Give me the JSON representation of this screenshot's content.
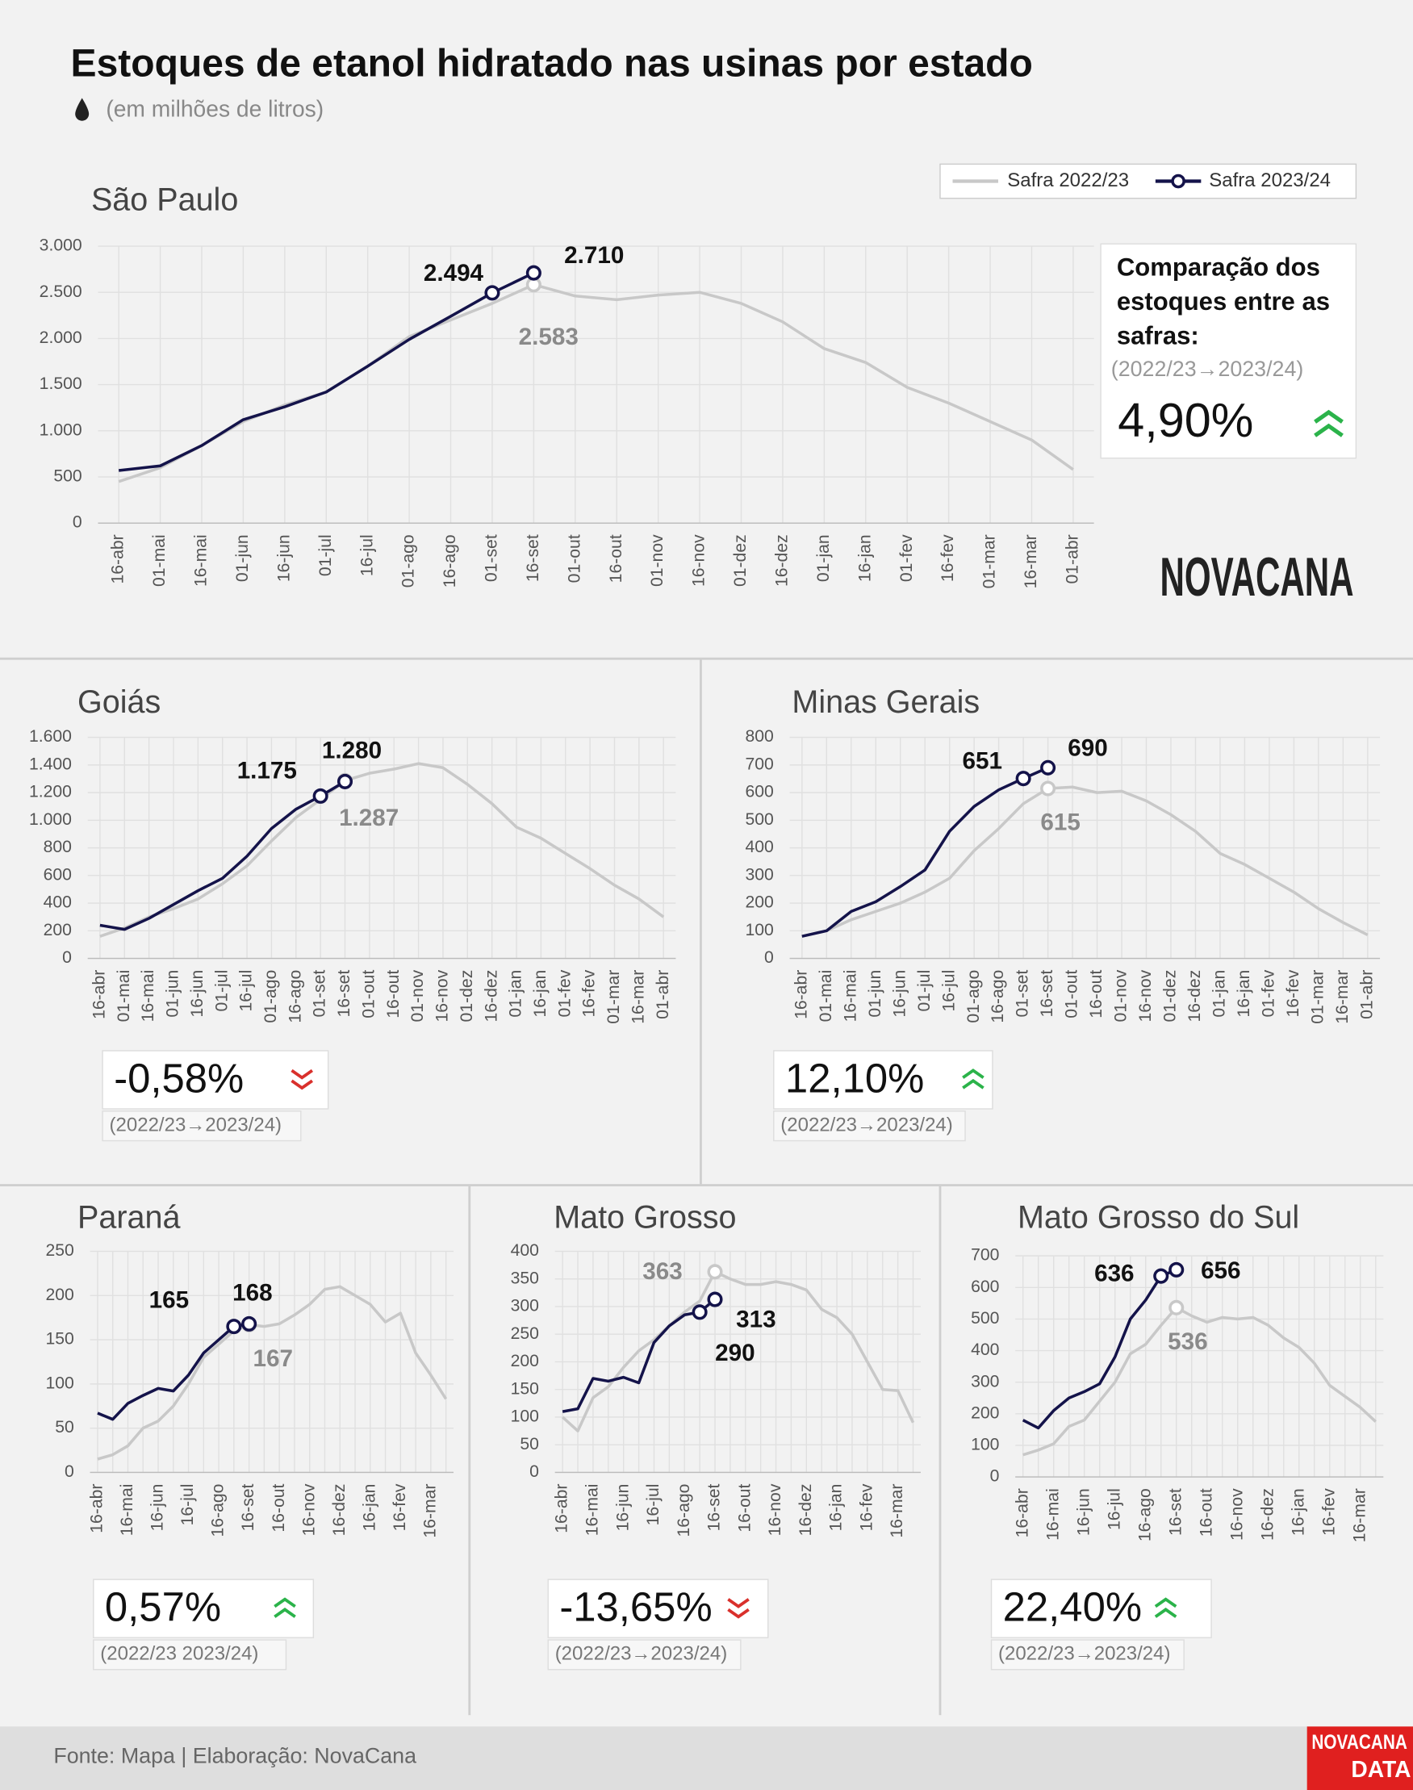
{
  "title": "Estoques de etanol hidratado nas usinas por estado",
  "subtitle": "(em milhões de litros)",
  "logo": "NOVACANA",
  "footer_logo": [
    "NOVACANA",
    "DATA"
  ],
  "source": "Fonte: Mapa | Elaboração: NovaCana",
  "chart_data": [
    {
      "type": "line",
      "title": "São Paulo",
      "grid": true,
      "categories": [
        "16-abr",
        "01-mai",
        "16-mai",
        "01-jun",
        "16-jun",
        "01-jul",
        "16-jul",
        "01-ago",
        "16-ago",
        "01-set",
        "16-set",
        "01-out",
        "16-out",
        "01-nov",
        "16-nov",
        "01-dez",
        "16-dez",
        "01-jan",
        "16-jan",
        "01-fev",
        "16-fev",
        "01-mar",
        "16-mar",
        "01-abr"
      ],
      "ylim": [
        0,
        3000
      ],
      "yticks": [
        0,
        500,
        {
          "value": 1000,
          "label": "1.000"
        },
        {
          "value": 1500,
          "label": "1.500"
        },
        {
          "value": 2000,
          "label": "2.000"
        },
        {
          "value": 2500,
          "label": "2.500"
        },
        {
          "value": 3000,
          "label": "3.000"
        }
      ],
      "series": [
        {
          "name": "Safra 2022/23",
          "color": "#c8c8c8",
          "values": [
            450,
            600,
            840,
            1100,
            1280,
            1420,
            1700,
            2020,
            2200,
            2380,
            2583,
            2460,
            2420,
            2470,
            2500,
            2380,
            2180,
            1890,
            1740,
            1470,
            1300,
            1100,
            900,
            580
          ],
          "value_labels": [
            null,
            null,
            null,
            null,
            null,
            null,
            null,
            null,
            null,
            null,
            "2.583",
            null,
            null,
            null,
            null,
            null,
            null,
            null,
            null,
            null,
            null,
            null,
            null,
            null
          ]
        },
        {
          "name": "Safra 2023/24",
          "color": "#14134a",
          "values": [
            570,
            620,
            840,
            1120,
            1260,
            1420,
            1700,
            1990,
            2240,
            2494,
            2710,
            null,
            null,
            null,
            null,
            null,
            null,
            null,
            null,
            null,
            null,
            null,
            null,
            null
          ],
          "value_labels": [
            null,
            null,
            null,
            null,
            null,
            null,
            null,
            null,
            null,
            "2.494",
            "2.710",
            null,
            null,
            null,
            null,
            null,
            null,
            null,
            null,
            null,
            null,
            null,
            null,
            null
          ]
        }
      ],
      "comparison_title": "Comparação dos estoques entre as safras:",
      "comparison": "4,90%",
      "trend": "up",
      "period": "(2022/23→2023/24)"
    },
    {
      "type": "line",
      "title": "Goiás",
      "grid": true,
      "categories": [
        "16-abr",
        "01-mai",
        "16-mai",
        "01-jun",
        "16-jun",
        "01-jul",
        "16-jul",
        "01-ago",
        "16-ago",
        "01-set",
        "16-set",
        "01-out",
        "16-out",
        "01-nov",
        "16-nov",
        "01-dez",
        "16-dez",
        "01-jan",
        "16-jan",
        "01-fev",
        "16-fev",
        "01-mar",
        "16-mar",
        "01-abr"
      ],
      "ylim": [
        0,
        1600
      ],
      "yticks": [
        0,
        200,
        400,
        600,
        800,
        {
          "value": 1000,
          "label": "1.000"
        },
        {
          "value": 1200,
          "label": "1.200"
        },
        {
          "value": 1400,
          "label": "1.400"
        },
        {
          "value": 1600,
          "label": "1.600"
        }
      ],
      "series": [
        {
          "color": "#c8c8c8",
          "values": [
            160,
            220,
            300,
            360,
            430,
            540,
            670,
            850,
            1020,
            1150,
            1287,
            1340,
            1370,
            1410,
            1380,
            1260,
            1120,
            950,
            870,
            760,
            650,
            530,
            430,
            300
          ],
          "value_labels": [
            null,
            null,
            null,
            null,
            null,
            null,
            null,
            null,
            null,
            null,
            "1.287",
            null,
            null,
            null,
            null,
            null,
            null,
            null,
            null,
            null,
            null,
            null,
            null,
            null
          ]
        },
        {
          "color": "#14134a",
          "values": [
            240,
            210,
            290,
            390,
            490,
            580,
            740,
            940,
            1080,
            1175,
            1280,
            null,
            null,
            null,
            null,
            null,
            null,
            null,
            null,
            null,
            null,
            null,
            null,
            null
          ],
          "value_labels": [
            null,
            null,
            null,
            null,
            null,
            null,
            null,
            null,
            null,
            "1.175",
            "1.280",
            null,
            null,
            null,
            null,
            null,
            null,
            null,
            null,
            null,
            null,
            null,
            null,
            null
          ]
        }
      ],
      "comparison": "-0,58%",
      "trend": "down",
      "period": "(2022/23→2023/24)"
    },
    {
      "type": "line",
      "title": "Minas Gerais",
      "grid": true,
      "categories": [
        "16-abr",
        "01-mai",
        "16-mai",
        "01-jun",
        "16-jun",
        "01-jul",
        "16-jul",
        "01-ago",
        "16-ago",
        "01-set",
        "16-set",
        "01-out",
        "16-out",
        "01-nov",
        "16-nov",
        "01-dez",
        "16-dez",
        "01-jan",
        "16-jan",
        "01-fev",
        "16-fev",
        "01-mar",
        "16-mar",
        "01-abr"
      ],
      "ylim": [
        0,
        800
      ],
      "yticks": [
        0,
        100,
        200,
        300,
        400,
        500,
        600,
        700,
        800
      ],
      "series": [
        {
          "color": "#c8c8c8",
          "values": [
            80,
            100,
            140,
            170,
            200,
            240,
            290,
            390,
            470,
            560,
            615,
            620,
            600,
            605,
            570,
            520,
            460,
            380,
            340,
            290,
            240,
            180,
            130,
            85
          ],
          "value_labels": [
            null,
            null,
            null,
            null,
            null,
            null,
            null,
            null,
            null,
            null,
            "615",
            null,
            null,
            null,
            null,
            null,
            null,
            null,
            null,
            null,
            null,
            null,
            null,
            null
          ]
        },
        {
          "color": "#14134a",
          "values": [
            80,
            100,
            170,
            205,
            260,
            320,
            460,
            550,
            610,
            651,
            690,
            null,
            null,
            null,
            null,
            null,
            null,
            null,
            null,
            null,
            null,
            null,
            null,
            null
          ],
          "value_labels": [
            null,
            null,
            null,
            null,
            null,
            null,
            null,
            null,
            null,
            "651",
            "690",
            null,
            null,
            null,
            null,
            null,
            null,
            null,
            null,
            null,
            null,
            null,
            null,
            null
          ]
        }
      ],
      "comparison": "12,10%",
      "trend": "up",
      "period": "(2022/23→2023/24)"
    },
    {
      "type": "line",
      "title": "Paraná",
      "grid": true,
      "categories": [
        "16-abr",
        null,
        "16-mai",
        null,
        "16-jun",
        null,
        "16-jul",
        null,
        "16-ago",
        null,
        "16-set",
        null,
        "16-out",
        null,
        "16-nov",
        null,
        "16-dez",
        null,
        "16-jan",
        null,
        "16-fev",
        null,
        "16-mar",
        null
      ],
      "ylim": [
        0,
        250
      ],
      "yticks": [
        0,
        50,
        100,
        150,
        200,
        250
      ],
      "series": [
        {
          "color": "#c8c8c8",
          "values": [
            15,
            20,
            30,
            50,
            58,
            75,
            100,
            130,
            145,
            160,
            167,
            165,
            168,
            178,
            190,
            207,
            210,
            200,
            190,
            170,
            180,
            135,
            110,
            83
          ],
          "value_labels": [
            null,
            null,
            null,
            null,
            null,
            null,
            null,
            null,
            null,
            null,
            "167",
            null,
            null,
            null,
            null,
            null,
            null,
            null,
            null,
            null,
            null,
            null,
            null,
            null
          ]
        },
        {
          "color": "#14134a",
          "values": [
            67,
            60,
            78,
            87,
            95,
            92,
            110,
            135,
            150,
            165,
            168,
            null,
            null,
            null,
            null,
            null,
            null,
            null,
            null,
            null,
            null,
            null,
            null,
            null
          ],
          "value_labels": [
            null,
            null,
            null,
            null,
            null,
            null,
            null,
            null,
            null,
            "165",
            "168",
            null,
            null,
            null,
            null,
            null,
            null,
            null,
            null,
            null,
            null,
            null,
            null,
            null
          ]
        }
      ],
      "comparison": "0,57%",
      "trend": "up",
      "period": "(2022/23   2023/24)"
    },
    {
      "type": "line",
      "title": "Mato Grosso",
      "grid": true,
      "categories": [
        "16-abr",
        null,
        "16-mai",
        null,
        "16-jun",
        null,
        "16-jul",
        null,
        "16-ago",
        null,
        "16-set",
        null,
        "16-out",
        null,
        "16-nov",
        null,
        "16-dez",
        null,
        "16-jan",
        null,
        "16-fev",
        null,
        "16-mar",
        null
      ],
      "ylim": [
        0,
        400
      ],
      "yticks": [
        0,
        50,
        100,
        150,
        200,
        250,
        300,
        350,
        400
      ],
      "series": [
        {
          "color": "#c8c8c8",
          "values": [
            100,
            75,
            135,
            155,
            190,
            220,
            240,
            265,
            290,
            310,
            363,
            350,
            340,
            340,
            345,
            340,
            330,
            295,
            280,
            250,
            200,
            150,
            148,
            90
          ],
          "value_labels": [
            null,
            null,
            null,
            null,
            null,
            null,
            null,
            null,
            null,
            null,
            "363",
            null,
            null,
            null,
            null,
            null,
            null,
            null,
            null,
            null,
            null,
            null,
            null,
            null
          ]
        },
        {
          "color": "#14134a",
          "values": [
            110,
            115,
            170,
            165,
            172,
            162,
            235,
            265,
            285,
            290,
            313,
            null,
            null,
            null,
            null,
            null,
            null,
            null,
            null,
            null,
            null,
            null,
            null,
            null
          ],
          "value_labels": [
            null,
            null,
            null,
            null,
            null,
            null,
            null,
            null,
            null,
            "290",
            "313",
            null,
            null,
            null,
            null,
            null,
            null,
            null,
            null,
            null,
            null,
            null,
            null,
            null
          ]
        }
      ],
      "comparison": "-13,65%",
      "trend": "down",
      "period": "(2022/23→2023/24)"
    },
    {
      "type": "line",
      "title": "Mato Grosso do Sul",
      "grid": true,
      "categories": [
        "16-abr",
        null,
        "16-mai",
        null,
        "16-jun",
        null,
        "16-jul",
        null,
        "16-ago",
        null,
        "16-set",
        null,
        "16-out",
        null,
        "16-nov",
        null,
        "16-dez",
        null,
        "16-jan",
        null,
        "16-fev",
        null,
        "16-mar",
        null
      ],
      "ylim": [
        0,
        700
      ],
      "yticks": [
        0,
        100,
        200,
        300,
        400,
        500,
        600,
        700
      ],
      "series": [
        {
          "color": "#c8c8c8",
          "values": [
            70,
            85,
            105,
            160,
            180,
            240,
            300,
            390,
            420,
            480,
            536,
            510,
            490,
            505,
            500,
            505,
            480,
            440,
            410,
            360,
            290,
            255,
            220,
            175
          ],
          "value_labels": [
            null,
            null,
            null,
            null,
            null,
            null,
            null,
            null,
            null,
            null,
            "536",
            null,
            null,
            null,
            null,
            null,
            null,
            null,
            null,
            null,
            null,
            null,
            null,
            null
          ]
        },
        {
          "color": "#14134a",
          "values": [
            180,
            155,
            210,
            250,
            270,
            295,
            380,
            500,
            560,
            636,
            656,
            null,
            null,
            null,
            null,
            null,
            null,
            null,
            null,
            null,
            null,
            null,
            null,
            null
          ],
          "value_labels": [
            null,
            null,
            null,
            null,
            null,
            null,
            null,
            null,
            null,
            "636",
            "656",
            null,
            null,
            null,
            null,
            null,
            null,
            null,
            null,
            null,
            null,
            null,
            null,
            null
          ]
        }
      ],
      "comparison": "22,40%",
      "trend": "up",
      "period": "(2022/23→2023/24)"
    }
  ]
}
